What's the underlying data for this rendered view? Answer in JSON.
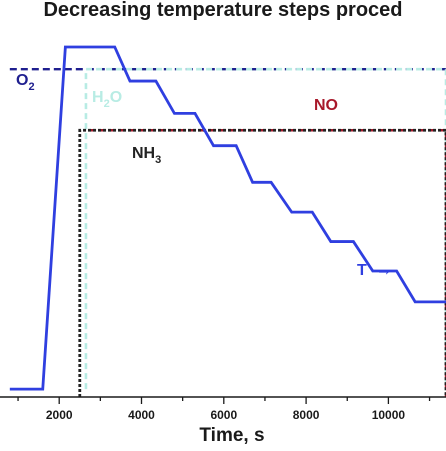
{
  "chart_data": {
    "type": "line",
    "title": "Decreasing temperature steps proced",
    "xlabel": "Time, s",
    "ylabel": "",
    "xlim": [
      800,
      11600
    ],
    "ylim": [
      0,
      100
    ],
    "x_ticks": [
      2000,
      4000,
      6000,
      8000,
      10000
    ],
    "x_tick_labels": [
      "2000",
      "4000",
      "6000",
      "8000",
      "10000"
    ],
    "grid": false,
    "legend": "none",
    "series": [
      {
        "name": "O2",
        "label_main": "O",
        "label_sub": "2",
        "color": "#1f1f8f",
        "style": "dashed",
        "points": [
          [
            800,
            91.3
          ],
          [
            11600,
            91.3
          ]
        ]
      },
      {
        "name": "H2O",
        "label_main": "H",
        "label_sub": "2",
        "label_tail": "O",
        "color": "#b8ece4",
        "style": "dashed",
        "points": [
          [
            2650,
            2.2
          ],
          [
            2650,
            91.3
          ],
          [
            11400,
            91.3
          ],
          [
            11400,
            2.2
          ]
        ]
      },
      {
        "name": "NO",
        "label_main": "NO",
        "color": "#a8182a",
        "style": "dashed",
        "points": [
          [
            2700,
            74.3
          ],
          [
            11500,
            74.3
          ],
          [
            11500,
            0
          ]
        ]
      },
      {
        "name": "NH3",
        "label_main": "NH",
        "label_sub": "3",
        "color": "#222222",
        "style": "dashed",
        "points": [
          [
            2500,
            0
          ],
          [
            2500,
            74.3
          ],
          [
            11500,
            74.3
          ],
          [
            11500,
            0
          ]
        ]
      },
      {
        "name": "T",
        "label_main": "T",
        "arrow": "→",
        "color": "#2f3fe0",
        "style": "solid",
        "points": [
          [
            800,
            2.2
          ],
          [
            1600,
            2.2
          ],
          [
            2150,
            97.5
          ],
          [
            3350,
            97.5
          ],
          [
            3720,
            88.0
          ],
          [
            4350,
            88.0
          ],
          [
            4800,
            79.0
          ],
          [
            5300,
            79.0
          ],
          [
            5750,
            70.0
          ],
          [
            6300,
            70.0
          ],
          [
            6700,
            59.8
          ],
          [
            7150,
            59.8
          ],
          [
            7650,
            51.5
          ],
          [
            8150,
            51.5
          ],
          [
            8600,
            43.3
          ],
          [
            9150,
            43.3
          ],
          [
            9620,
            35.1
          ],
          [
            10200,
            35.1
          ],
          [
            10650,
            26.5
          ],
          [
            11600,
            26.5
          ]
        ]
      }
    ]
  }
}
